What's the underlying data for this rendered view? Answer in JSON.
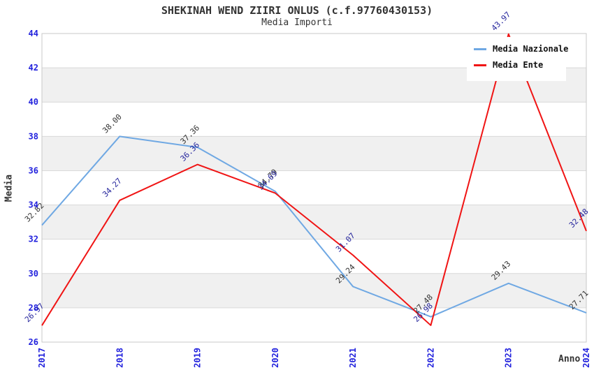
{
  "header": {
    "title": "SHEKINAH WEND ZIIRI ONLUS (c.f.97760430153)",
    "subtitle": "Media Importi"
  },
  "chart_data": {
    "type": "line",
    "title": "SHEKINAH WEND ZIIRI ONLUS (c.f.97760430153)",
    "subtitle": "Media Importi",
    "xlabel": "Anno",
    "ylabel": "Media",
    "x": [
      2017,
      2018,
      2019,
      2020,
      2021,
      2022,
      2023,
      2024
    ],
    "ylim": [
      26,
      44
    ],
    "ytick_step": 2,
    "grid": "horizontal-bands",
    "legend_position": "top-right",
    "series": [
      {
        "name": "Media Nazionale",
        "color": "#6fa8e3",
        "label_color": "#333333",
        "values": [
          32.82,
          38.0,
          37.36,
          34.79,
          29.24,
          27.48,
          29.43,
          27.71
        ]
      },
      {
        "name": "Media Ente",
        "color": "#f01414",
        "label_color": "#24249c",
        "values": [
          26.97,
          34.27,
          36.36,
          34.69,
          31.07,
          26.98,
          43.97,
          32.48
        ]
      }
    ],
    "colors": {
      "tick": "#2222dd",
      "band": "#f0f0f0",
      "grid": "#d9d9d9",
      "border": "#c9c9c9",
      "title": "#333333"
    }
  }
}
